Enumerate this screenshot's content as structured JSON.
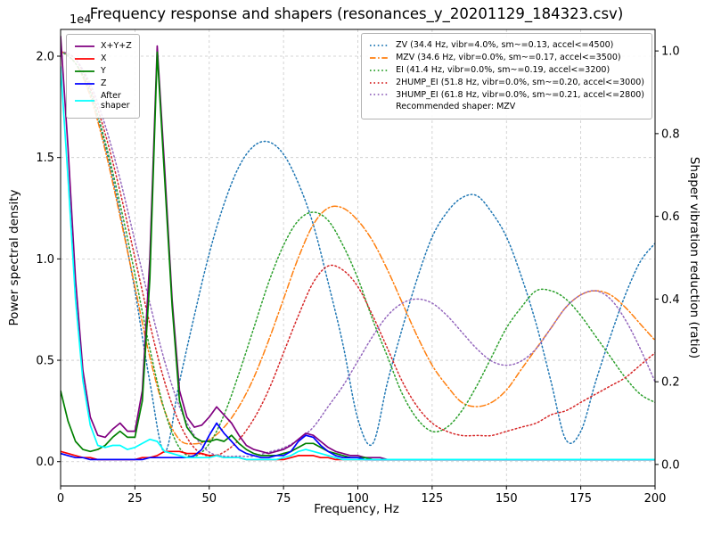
{
  "title": "Frequency response and shapers (resonances_y_20201129_184323.csv)",
  "axes": {
    "xlabel": "Frequency, Hz",
    "ylabel_left": "Power spectral density",
    "ylabel_right": "Shaper vibration reduction (ratio)",
    "offset_text": "1e4",
    "x_ticks": [
      0,
      25,
      50,
      75,
      100,
      125,
      150,
      175,
      200
    ],
    "y_ticks_left": {
      "values": [
        0,
        0.5,
        1.0,
        1.5,
        2.0
      ],
      "labels": [
        "0.0",
        "0.5",
        "1.0",
        "1.5",
        "2.0"
      ]
    },
    "y_ticks_right": {
      "values": [
        0,
        0.2,
        0.4,
        0.6,
        0.8,
        1.0
      ],
      "labels": [
        "0.0",
        "0.2",
        "0.4",
        "0.6",
        "0.8",
        "1.0"
      ]
    }
  },
  "legend_psd": {
    "items": [
      {
        "label": "X+Y+Z",
        "color": "#800080",
        "dash": "solid"
      },
      {
        "label": "X",
        "color": "#ff0000",
        "dash": "solid"
      },
      {
        "label": "Y",
        "color": "#008000",
        "dash": "solid"
      },
      {
        "label": "Z",
        "color": "#0000ff",
        "dash": "solid"
      },
      {
        "label": "After\nshaper",
        "color": "#00ffff",
        "dash": "solid"
      }
    ]
  },
  "legend_shapers": {
    "items": [
      {
        "label": "ZV (34.4 Hz, vibr=4.0%, sm~=0.13, accel<=4500)",
        "color": "#1f77b4",
        "dash": "dotted"
      },
      {
        "label": "MZV (34.6 Hz, vibr=0.0%, sm~=0.17, accel<=3500)",
        "color": "#ff7f0e",
        "dash": "dashdot"
      },
      {
        "label": "EI (41.4 Hz, vibr=0.0%, sm~=0.19, accel<=3200)",
        "color": "#2ca02c",
        "dash": "dotted"
      },
      {
        "label": "2HUMP_EI (51.8 Hz, vibr=0.0%, sm~=0.20, accel<=3000)",
        "color": "#d62728",
        "dash": "dotted"
      },
      {
        "label": "3HUMP_EI (61.8 Hz, vibr=0.0%, sm~=0.21, accel<=2800)",
        "color": "#9467bd",
        "dash": "dotted"
      }
    ],
    "note": "Recommended shaper: MZV"
  },
  "chart_data": {
    "type": "line",
    "title": "Frequency response and shapers (resonances_y_20201129_184323.csv)",
    "xlabel": "Frequency, Hz",
    "ylabel": "Power spectral density",
    "ylabel_right": "Shaper vibration reduction (ratio)",
    "grid": true,
    "legend_position": [
      "upper left",
      "upper right"
    ],
    "recommended_shaper": "MZV",
    "xlim": [
      0,
      200
    ],
    "psd_unit": "1e4",
    "ylim_left": [
      -0.12,
      2.132
    ],
    "ylim_right": [
      -0.052,
      1.052
    ],
    "x_psd": [
      0,
      2.5,
      5,
      7.5,
      10,
      12.5,
      15,
      17.5,
      20,
      22.5,
      25,
      27.5,
      30,
      32.5,
      35,
      37.5,
      40,
      42.5,
      45,
      47.5,
      50,
      52.5,
      55,
      57.5,
      60,
      62.5,
      65,
      67.5,
      70,
      72.5,
      75,
      77.5,
      80,
      82.5,
      85,
      87.5,
      90,
      92.5,
      95,
      97.5,
      100,
      102.5,
      105,
      107.5,
      110,
      115,
      120,
      130,
      140,
      150,
      160,
      170,
      180,
      190,
      200
    ],
    "psd_series": [
      {
        "name": "X+Y+Z",
        "color": "#800080",
        "values": [
          2.1,
          1.55,
          0.9,
          0.45,
          0.22,
          0.13,
          0.12,
          0.16,
          0.19,
          0.15,
          0.15,
          0.35,
          1.0,
          2.05,
          1.45,
          0.8,
          0.35,
          0.22,
          0.17,
          0.18,
          0.22,
          0.27,
          0.23,
          0.19,
          0.13,
          0.08,
          0.06,
          0.05,
          0.04,
          0.05,
          0.06,
          0.08,
          0.11,
          0.14,
          0.13,
          0.1,
          0.07,
          0.05,
          0.04,
          0.03,
          0.03,
          0.02,
          0.02,
          0.02,
          0.01,
          0.01,
          0.01,
          0.01,
          0.01,
          0.01,
          0.01,
          0.01,
          0.01,
          0.01,
          0.01
        ]
      },
      {
        "name": "X",
        "color": "#ff0000",
        "values": [
          0.05,
          0.04,
          0.03,
          0.02,
          0.02,
          0.01,
          0.01,
          0.01,
          0.01,
          0.01,
          0.01,
          0.02,
          0.02,
          0.03,
          0.05,
          0.05,
          0.05,
          0.04,
          0.04,
          0.04,
          0.03,
          0.03,
          0.02,
          0.02,
          0.02,
          0.01,
          0.01,
          0.01,
          0.01,
          0.01,
          0.01,
          0.02,
          0.03,
          0.03,
          0.03,
          0.02,
          0.02,
          0.01,
          0.01,
          0.01,
          0.01,
          0.01,
          0.01,
          0.01,
          0.01,
          0.01,
          0.01,
          0.01,
          0.01,
          0.01,
          0.01,
          0.01,
          0.01,
          0.01,
          0.01
        ]
      },
      {
        "name": "Y",
        "color": "#008000",
        "values": [
          0.35,
          0.2,
          0.1,
          0.06,
          0.05,
          0.06,
          0.08,
          0.12,
          0.15,
          0.12,
          0.12,
          0.3,
          0.9,
          2.02,
          1.4,
          0.77,
          0.3,
          0.17,
          0.12,
          0.1,
          0.1,
          0.11,
          0.1,
          0.13,
          0.09,
          0.06,
          0.04,
          0.03,
          0.03,
          0.03,
          0.04,
          0.05,
          0.07,
          0.09,
          0.09,
          0.07,
          0.05,
          0.04,
          0.03,
          0.02,
          0.02,
          0.02,
          0.01,
          0.01,
          0.01,
          0.01,
          0.01,
          0.01,
          0.01,
          0.01,
          0.01,
          0.01,
          0.01,
          0.01,
          0.01
        ]
      },
      {
        "name": "Z",
        "color": "#0000ff",
        "values": [
          0.04,
          0.03,
          0.02,
          0.02,
          0.01,
          0.01,
          0.01,
          0.01,
          0.01,
          0.01,
          0.01,
          0.01,
          0.02,
          0.02,
          0.02,
          0.02,
          0.02,
          0.02,
          0.03,
          0.06,
          0.13,
          0.19,
          0.14,
          0.1,
          0.06,
          0.04,
          0.03,
          0.02,
          0.02,
          0.03,
          0.03,
          0.05,
          0.1,
          0.13,
          0.12,
          0.08,
          0.05,
          0.03,
          0.02,
          0.02,
          0.02,
          0.01,
          0.01,
          0.01,
          0.01,
          0.01,
          0.01,
          0.01,
          0.01,
          0.01,
          0.01,
          0.01,
          0.01,
          0.01,
          0.01
        ]
      },
      {
        "name": "After shaper",
        "color": "#00ffff",
        "values": [
          1.95,
          1.4,
          0.8,
          0.4,
          0.18,
          0.08,
          0.07,
          0.08,
          0.08,
          0.06,
          0.07,
          0.09,
          0.11,
          0.1,
          0.05,
          0.04,
          0.03,
          0.02,
          0.02,
          0.02,
          0.02,
          0.03,
          0.02,
          0.02,
          0.02,
          0.01,
          0.01,
          0.01,
          0.01,
          0.01,
          0.02,
          0.03,
          0.05,
          0.06,
          0.05,
          0.04,
          0.03,
          0.02,
          0.01,
          0.01,
          0.01,
          0.01,
          0.01,
          0.01,
          0.01,
          0.01,
          0.01,
          0.01,
          0.01,
          0.01,
          0.01,
          0.01,
          0.01,
          0.01,
          0.01
        ]
      }
    ],
    "x_shaper": [
      0,
      5,
      10,
      15,
      20,
      25,
      30,
      35,
      40,
      45,
      50,
      55,
      60,
      65,
      70,
      75,
      80,
      85,
      90,
      95,
      100,
      105,
      110,
      115,
      120,
      125,
      130,
      135,
      140,
      145,
      150,
      155,
      160,
      165,
      170,
      175,
      180,
      185,
      190,
      195,
      200
    ],
    "shaper_series": [
      {
        "name": "ZV",
        "freq_hz": 34.4,
        "vibr_pct": 4.0,
        "smoothing": 0.13,
        "max_accel": 4500,
        "color": "#1f77b4",
        "dash": "dotted",
        "values": [
          1.0,
          0.97,
          0.9,
          0.77,
          0.61,
          0.42,
          0.2,
          0.03,
          0.2,
          0.36,
          0.51,
          0.63,
          0.72,
          0.77,
          0.78,
          0.75,
          0.68,
          0.58,
          0.44,
          0.29,
          0.11,
          0.05,
          0.2,
          0.33,
          0.45,
          0.55,
          0.61,
          0.645,
          0.65,
          0.61,
          0.55,
          0.455,
          0.34,
          0.2,
          0.06,
          0.08,
          0.2,
          0.31,
          0.41,
          0.49,
          0.535
        ]
      },
      {
        "name": "MZV",
        "freq_hz": 34.6,
        "vibr_pct": 0.0,
        "smoothing": 0.17,
        "max_accel": 3500,
        "color": "#ff7f0e",
        "dash": "dashdot",
        "values": [
          1.0,
          0.97,
          0.89,
          0.76,
          0.6,
          0.43,
          0.26,
          0.13,
          0.06,
          0.05,
          0.06,
          0.09,
          0.14,
          0.21,
          0.3,
          0.4,
          0.5,
          0.58,
          0.62,
          0.62,
          0.59,
          0.54,
          0.47,
          0.39,
          0.31,
          0.24,
          0.19,
          0.15,
          0.14,
          0.15,
          0.18,
          0.23,
          0.28,
          0.33,
          0.38,
          0.41,
          0.42,
          0.41,
          0.38,
          0.34,
          0.3
        ]
      },
      {
        "name": "EI",
        "freq_hz": 41.4,
        "vibr_pct": 0.0,
        "smoothing": 0.19,
        "max_accel": 3200,
        "color": "#2ca02c",
        "dash": "dotted",
        "values": [
          1.0,
          0.97,
          0.9,
          0.78,
          0.63,
          0.46,
          0.28,
          0.13,
          0.04,
          0.02,
          0.05,
          0.12,
          0.22,
          0.33,
          0.44,
          0.53,
          0.59,
          0.61,
          0.59,
          0.53,
          0.45,
          0.35,
          0.26,
          0.17,
          0.11,
          0.08,
          0.09,
          0.13,
          0.19,
          0.26,
          0.33,
          0.38,
          0.42,
          0.42,
          0.4,
          0.36,
          0.31,
          0.26,
          0.21,
          0.17,
          0.15
        ]
      },
      {
        "name": "2HUMP_EI",
        "freq_hz": 51.8,
        "vibr_pct": 0.0,
        "smoothing": 0.2,
        "max_accel": 3000,
        "color": "#d62728",
        "dash": "dotted",
        "values": [
          1.0,
          0.98,
          0.91,
          0.8,
          0.66,
          0.5,
          0.34,
          0.2,
          0.1,
          0.04,
          0.02,
          0.03,
          0.06,
          0.11,
          0.18,
          0.27,
          0.36,
          0.44,
          0.48,
          0.47,
          0.43,
          0.36,
          0.28,
          0.2,
          0.14,
          0.1,
          0.08,
          0.07,
          0.07,
          0.07,
          0.08,
          0.09,
          0.1,
          0.12,
          0.13,
          0.15,
          0.17,
          0.19,
          0.21,
          0.24,
          0.27
        ]
      },
      {
        "name": "3HUMP_EI",
        "freq_hz": 61.8,
        "vibr_pct": 0.0,
        "smoothing": 0.21,
        "max_accel": 2800,
        "color": "#9467bd",
        "dash": "dotted",
        "values": [
          1.0,
          0.98,
          0.92,
          0.82,
          0.69,
          0.54,
          0.39,
          0.25,
          0.14,
          0.07,
          0.03,
          0.02,
          0.02,
          0.02,
          0.03,
          0.04,
          0.06,
          0.09,
          0.14,
          0.19,
          0.25,
          0.31,
          0.36,
          0.39,
          0.4,
          0.39,
          0.36,
          0.32,
          0.28,
          0.25,
          0.24,
          0.25,
          0.28,
          0.33,
          0.38,
          0.41,
          0.42,
          0.4,
          0.35,
          0.28,
          0.2
        ]
      }
    ]
  }
}
